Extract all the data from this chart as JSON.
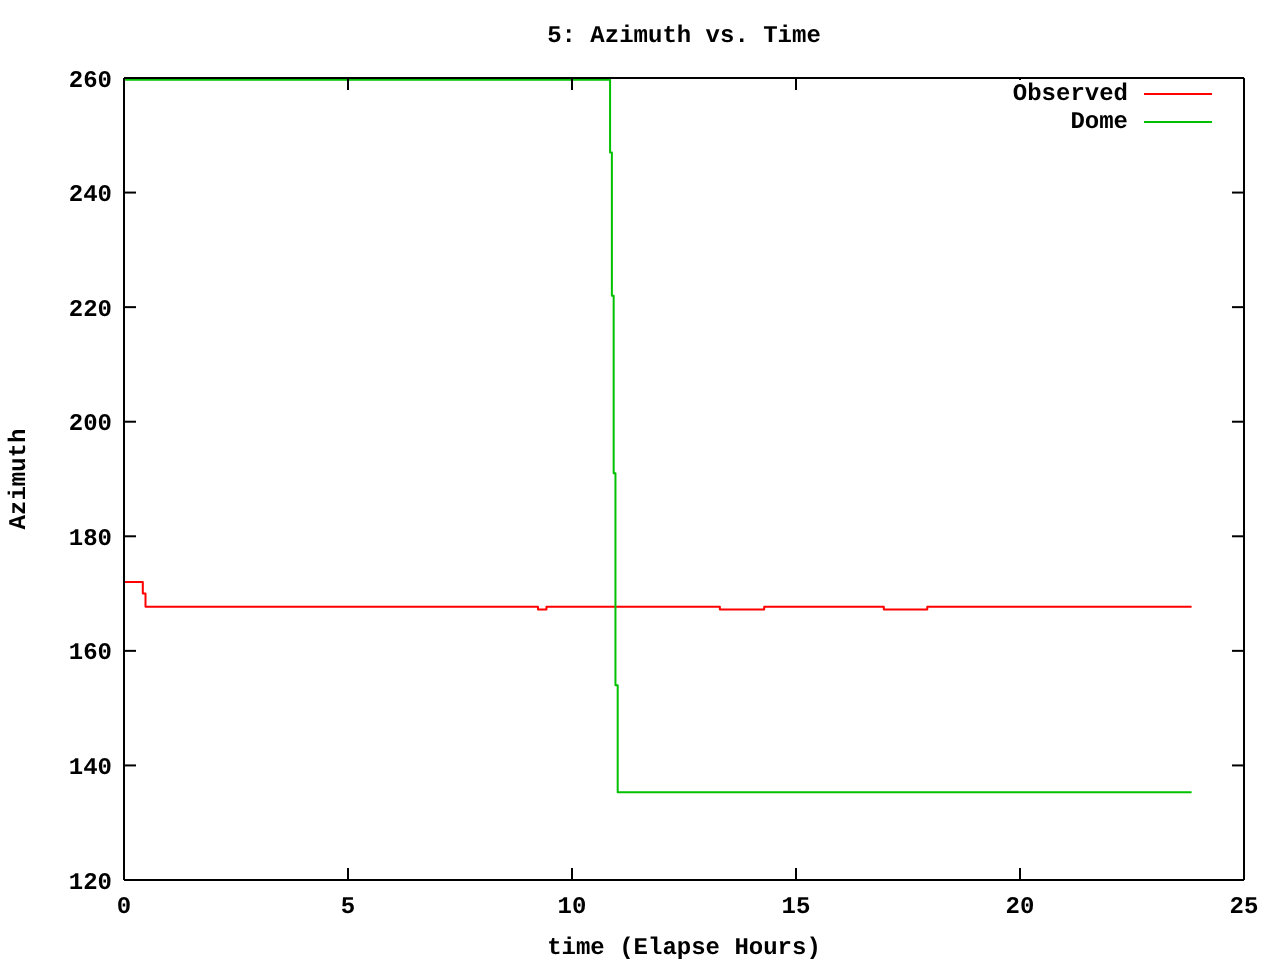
{
  "chart_data": {
    "type": "step",
    "title": "5: Azimuth vs. Time",
    "xlabel": "time (Elapse Hours)",
    "ylabel": "Azimuth",
    "xlim": [
      0,
      25
    ],
    "xticks": [
      0,
      5,
      10,
      15,
      20,
      25
    ],
    "ylim": [
      120,
      260
    ],
    "yticks": [
      120,
      140,
      160,
      180,
      200,
      220,
      240,
      260
    ],
    "legend": "top right",
    "series": [
      {
        "name": "Observed",
        "color": "#ff0000",
        "x": [
          0,
          0.42,
          0.48,
          9.24,
          9.43,
          13.3,
          14.29,
          16.96,
          17.93,
          23.83
        ],
        "values": [
          172,
          170,
          167.7,
          167.2,
          167.7,
          167.2,
          167.7,
          167.2,
          167.7,
          167.7
        ]
      },
      {
        "name": "Dome",
        "color": "#00c000",
        "x": [
          0,
          10.85,
          10.89,
          10.93,
          10.97,
          11.02,
          23.83
        ],
        "values": [
          259.7,
          247,
          222,
          191,
          154,
          135.3,
          135.3
        ]
      }
    ]
  }
}
